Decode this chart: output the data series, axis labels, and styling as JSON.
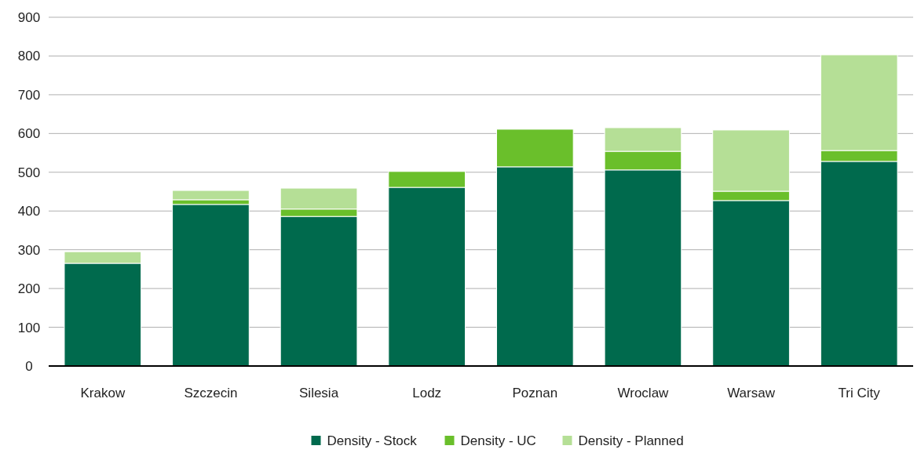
{
  "chart_data": {
    "type": "bar",
    "stacked": true,
    "categories": [
      "Krakow",
      "Szczecin",
      "Silesia",
      "Lodz",
      "Poznan",
      "Wroclaw",
      "Warsaw",
      "Tri City"
    ],
    "series": [
      {
        "name": "Density - Stock",
        "color": "#006a4d",
        "values": [
          265,
          417,
          386,
          461,
          514,
          506,
          427,
          528
        ]
      },
      {
        "name": "Density - UC",
        "color": "#6abf2b",
        "values": [
          0,
          12,
          19,
          41,
          97,
          48,
          24,
          28
        ]
      },
      {
        "name": "Density - Planned",
        "color": "#b5df96",
        "values": [
          30,
          24,
          54,
          0,
          0,
          61,
          158,
          247
        ]
      }
    ],
    "ylim": [
      0,
      900
    ],
    "yticks": [
      0,
      100,
      200,
      300,
      400,
      500,
      600,
      700,
      800,
      900
    ],
    "grid": "y",
    "legend": "bottom"
  }
}
